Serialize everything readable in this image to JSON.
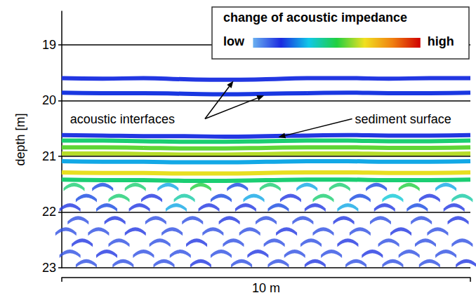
{
  "chart_data": {
    "type": "profile",
    "y_label": "depth [m]",
    "x_label": "10 m",
    "xlim": [
      0,
      10
    ],
    "xticks": [
      0,
      10
    ],
    "ylim": [
      18.4,
      23
    ],
    "yticks": [
      19,
      20,
      21,
      22,
      23
    ],
    "grid": true,
    "tick_labels": "y",
    "colorbar": {
      "title": "change of acoustic impedance",
      "low_label": "low",
      "high_label": "high",
      "range": [
        0,
        1
      ],
      "colors": [
        "#6ab0f0",
        "#1a2ae0",
        "#10c8e8",
        "#20d040",
        "#f0e020",
        "#f08010",
        "#d00000"
      ]
    },
    "x": [
      0,
      1,
      2,
      3,
      4,
      5,
      6,
      7,
      8,
      9,
      10
    ],
    "reflectors": [
      {
        "value": 0.15,
        "depth": [
          19.6,
          19.61,
          19.6,
          19.62,
          19.63,
          19.62,
          19.6,
          19.6,
          19.61,
          19.6,
          19.6
        ]
      },
      {
        "value": 0.18,
        "depth": [
          19.86,
          19.87,
          19.87,
          19.88,
          19.89,
          19.88,
          19.87,
          19.86,
          19.87,
          19.87,
          19.86
        ]
      },
      {
        "value": 0.15,
        "depth": [
          20.62,
          20.63,
          20.64,
          20.64,
          20.65,
          20.64,
          20.63,
          20.62,
          20.63,
          20.63,
          20.62
        ]
      },
      {
        "value": 0.45,
        "depth": [
          20.72,
          20.72,
          20.73,
          20.74,
          20.74,
          20.73,
          20.72,
          20.72,
          20.73,
          20.73,
          20.72
        ]
      },
      {
        "value": 0.55,
        "depth": [
          20.84,
          20.84,
          20.85,
          20.86,
          20.86,
          20.85,
          20.84,
          20.84,
          20.85,
          20.85,
          20.84
        ]
      },
      {
        "value": 0.62,
        "depth": [
          20.95,
          20.95,
          20.96,
          20.97,
          20.97,
          20.96,
          20.95,
          20.95,
          20.96,
          20.96,
          20.95
        ]
      },
      {
        "value": 0.3,
        "depth": [
          21.09,
          21.1,
          21.1,
          21.11,
          21.11,
          21.1,
          21.09,
          21.09,
          21.1,
          21.1,
          21.09
        ]
      },
      {
        "value": 0.66,
        "depth": [
          21.29,
          21.3,
          21.3,
          21.31,
          21.31,
          21.3,
          21.29,
          21.29,
          21.3,
          21.3,
          21.29
        ]
      },
      {
        "value": 0.45,
        "depth": [
          21.42,
          21.43,
          21.43,
          21.44,
          21.44,
          21.43,
          21.42,
          21.42,
          21.43,
          21.43,
          21.42
        ]
      }
    ],
    "marker": "arc",
    "diffractions": [
      {
        "depth": 21.55,
        "x": [
          0.3,
          1.0,
          1.8,
          2.6,
          3.4,
          4.3,
          5.1,
          6.0,
          6.8,
          7.7,
          8.5,
          9.4
        ],
        "values": [
          0.45,
          0.2,
          0.45,
          0.3,
          0.5,
          0.2,
          0.45,
          0.3,
          0.45,
          0.2,
          0.5,
          0.3
        ]
      },
      {
        "depth": 21.75,
        "x": [
          0.6,
          1.4,
          2.2,
          3.0,
          3.9,
          4.7,
          5.6,
          6.4,
          7.3,
          8.1,
          9.0,
          9.8
        ],
        "values": [
          0.2,
          0.45,
          0.15,
          0.4,
          0.2,
          0.3,
          0.15,
          0.45,
          0.2,
          0.35,
          0.15,
          0.4
        ]
      },
      {
        "depth": 21.92,
        "x": [
          0.2,
          1.1,
          1.9,
          2.8,
          3.6,
          4.5,
          5.3,
          6.2,
          7.0,
          7.9,
          8.7,
          9.6
        ],
        "values": [
          0.15,
          0.2,
          0.15,
          0.3,
          0.15,
          0.15,
          0.2,
          0.15,
          0.3,
          0.15,
          0.2,
          0.15
        ]
      },
      {
        "depth": 22.15,
        "x": [
          0.4,
          1.3,
          2.3,
          3.2,
          4.1,
          5.0,
          5.9,
          6.9,
          7.8,
          8.8,
          9.7
        ],
        "values": [
          0.12,
          0.15,
          0.12,
          0.12,
          0.15,
          0.12,
          0.12,
          0.15,
          0.12,
          0.12,
          0.15
        ]
      },
      {
        "depth": 22.35,
        "x": [
          0.1,
          0.9,
          1.8,
          2.7,
          3.7,
          4.6,
          5.5,
          6.4,
          7.3,
          8.3,
          9.2
        ],
        "values": [
          0.12,
          0.12,
          0.15,
          0.12,
          0.12,
          0.12,
          0.15,
          0.12,
          0.12,
          0.15,
          0.12
        ]
      },
      {
        "depth": 22.55,
        "x": [
          0.5,
          1.4,
          2.4,
          3.3,
          4.2,
          5.2,
          6.1,
          7.0,
          8.0,
          8.9,
          9.8
        ],
        "values": [
          0.15,
          0.12,
          0.12,
          0.15,
          0.12,
          0.12,
          0.12,
          0.15,
          0.12,
          0.12,
          0.12
        ]
      },
      {
        "depth": 22.75,
        "x": [
          0.2,
          1.1,
          2.0,
          2.9,
          3.9,
          4.8,
          5.7,
          6.6,
          7.6,
          8.5,
          9.4
        ],
        "values": [
          0.12,
          0.15,
          0.12,
          0.12,
          0.12,
          0.15,
          0.12,
          0.12,
          0.15,
          0.12,
          0.12
        ]
      },
      {
        "depth": 22.92,
        "x": [
          0.6,
          1.5,
          2.5,
          3.4,
          4.4,
          5.3,
          6.2,
          7.2,
          8.1,
          9.0,
          9.9
        ],
        "values": [
          0.12,
          0.12,
          0.12,
          0.15,
          0.12,
          0.12,
          0.15,
          0.12,
          0.12,
          0.12,
          0.15
        ]
      }
    ],
    "annotations": [
      {
        "text": "acoustic interfaces",
        "at": [
          0.1,
          20.33
        ],
        "targets": [
          [
            4.2,
            19.65
          ],
          [
            4.95,
            19.91
          ]
        ]
      },
      {
        "text": "sediment surface",
        "at": [
          10,
          20.33
        ],
        "targets": [
          [
            5.3,
            20.66
          ]
        ]
      }
    ]
  }
}
